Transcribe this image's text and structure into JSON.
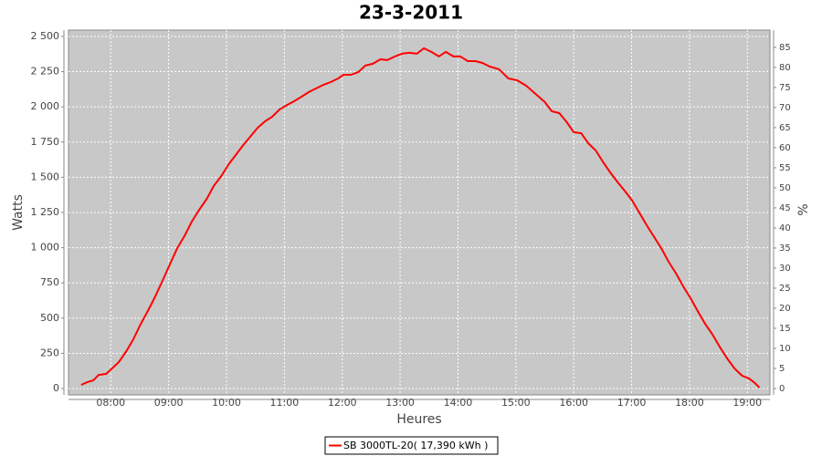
{
  "chart_data": {
    "type": "line",
    "title": "23-3-2011",
    "x_label": "Heures",
    "y_label": "Watts",
    "y2_label": "%",
    "x": [
      7.49,
      7.59,
      7.7,
      7.79,
      7.92,
      8.02,
      8.14,
      8.27,
      8.39,
      8.52,
      8.65,
      8.77,
      8.9,
      9.02,
      9.15,
      9.28,
      9.4,
      9.53,
      9.66,
      9.78,
      9.91,
      10.04,
      10.16,
      10.29,
      10.41,
      10.54,
      10.67,
      10.79,
      10.92,
      11.05,
      11.17,
      11.3,
      11.42,
      11.55,
      11.68,
      11.8,
      11.93,
      12.02,
      12.15,
      12.28,
      12.4,
      12.53,
      12.66,
      12.78,
      12.91,
      13.03,
      13.16,
      13.29,
      13.41,
      13.54,
      13.67,
      13.79,
      13.92,
      14.04,
      14.17,
      14.3,
      14.42,
      14.55,
      14.71,
      14.87,
      15.02,
      15.18,
      15.34,
      15.5,
      15.62,
      15.75,
      15.88,
      16.0,
      16.13,
      16.25,
      16.38,
      16.51,
      16.63,
      16.76,
      16.89,
      17.01,
      17.14,
      17.27,
      17.39,
      17.52,
      17.64,
      17.77,
      17.9,
      18.02,
      18.15,
      18.27,
      18.4,
      18.53,
      18.65,
      18.78,
      18.91,
      19.03,
      19.13,
      19.21
    ],
    "series": [
      {
        "name": "SB 3000TL-20( 17,390 kWh  )",
        "color": "#ff0000",
        "values": [
          26,
          45,
          58,
          97,
          104,
          142,
          188,
          266,
          350,
          460,
          557,
          654,
          771,
          881,
          997,
          1088,
          1185,
          1270,
          1347,
          1438,
          1509,
          1593,
          1658,
          1729,
          1788,
          1852,
          1898,
          1930,
          1982,
          2014,
          2040,
          2073,
          2105,
          2131,
          2157,
          2176,
          2202,
          2228,
          2228,
          2248,
          2293,
          2306,
          2338,
          2332,
          2358,
          2377,
          2384,
          2377,
          2416,
          2390,
          2358,
          2390,
          2358,
          2358,
          2325,
          2325,
          2312,
          2286,
          2267,
          2202,
          2189,
          2150,
          2092,
          2034,
          1969,
          1956,
          1891,
          1820,
          1813,
          1742,
          1690,
          1606,
          1535,
          1464,
          1399,
          1334,
          1244,
          1153,
          1075,
          991,
          900,
          816,
          719,
          641,
          544,
          460,
          382,
          291,
          214,
          142,
          91,
          71,
          39,
          6
        ]
      }
    ],
    "xlim": [
      7.27,
      19.39
    ],
    "xticks": [
      {
        "value": 8,
        "label": "08:00"
      },
      {
        "value": 9,
        "label": "09:00"
      },
      {
        "value": 10,
        "label": "10:00"
      },
      {
        "value": 11,
        "label": "11:00"
      },
      {
        "value": 12,
        "label": "12:00"
      },
      {
        "value": 13,
        "label": "13:00"
      },
      {
        "value": 14,
        "label": "14:00"
      },
      {
        "value": 15,
        "label": "15:00"
      },
      {
        "value": 16,
        "label": "16:00"
      },
      {
        "value": 17,
        "label": "17:00"
      },
      {
        "value": 18,
        "label": "18:00"
      },
      {
        "value": 19,
        "label": "19:00"
      }
    ],
    "ylim": [
      -45,
      2545
    ],
    "yticks": [
      0,
      250,
      500,
      750,
      {
        "value": 1000,
        "label": "1 000"
      },
      {
        "value": 1250,
        "label": "1 250"
      },
      {
        "value": 1500,
        "label": "1 500"
      },
      {
        "value": 1750,
        "label": "1 750"
      },
      {
        "value": 2000,
        "label": "2 000"
      },
      {
        "value": 2250,
        "label": "2 250"
      },
      {
        "value": 2500,
        "label": "2 500"
      }
    ],
    "y2lim": [
      -1.6,
      89.3
    ],
    "y2ticks": [
      0,
      5,
      10,
      15,
      20,
      25,
      30,
      35,
      40,
      45,
      50,
      55,
      60,
      65,
      70,
      75,
      80,
      85
    ],
    "grid": true,
    "legend": "bottom"
  }
}
